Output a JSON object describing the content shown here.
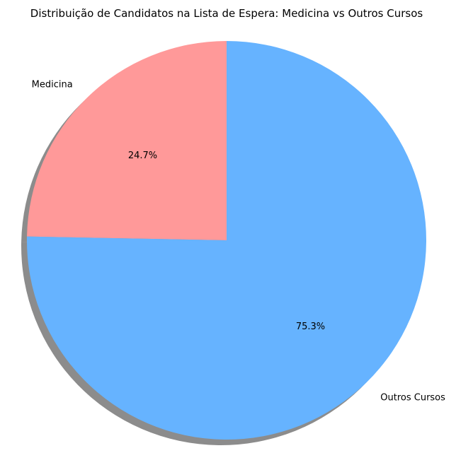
{
  "chart_data": {
    "type": "pie",
    "title": "Distribuição de Candidatos na Lista de Espera: Medicina vs Outros Cursos",
    "slices": [
      {
        "label": "Medicina",
        "value": 24.7,
        "pct_label": "24.7%",
        "color": "#ff9999"
      },
      {
        "label": "Outros Cursos",
        "value": 75.3,
        "pct_label": "75.3%",
        "color": "#66b3ff"
      }
    ],
    "start_angle_deg": 90,
    "direction": "counterclockwise",
    "shadow": true
  }
}
